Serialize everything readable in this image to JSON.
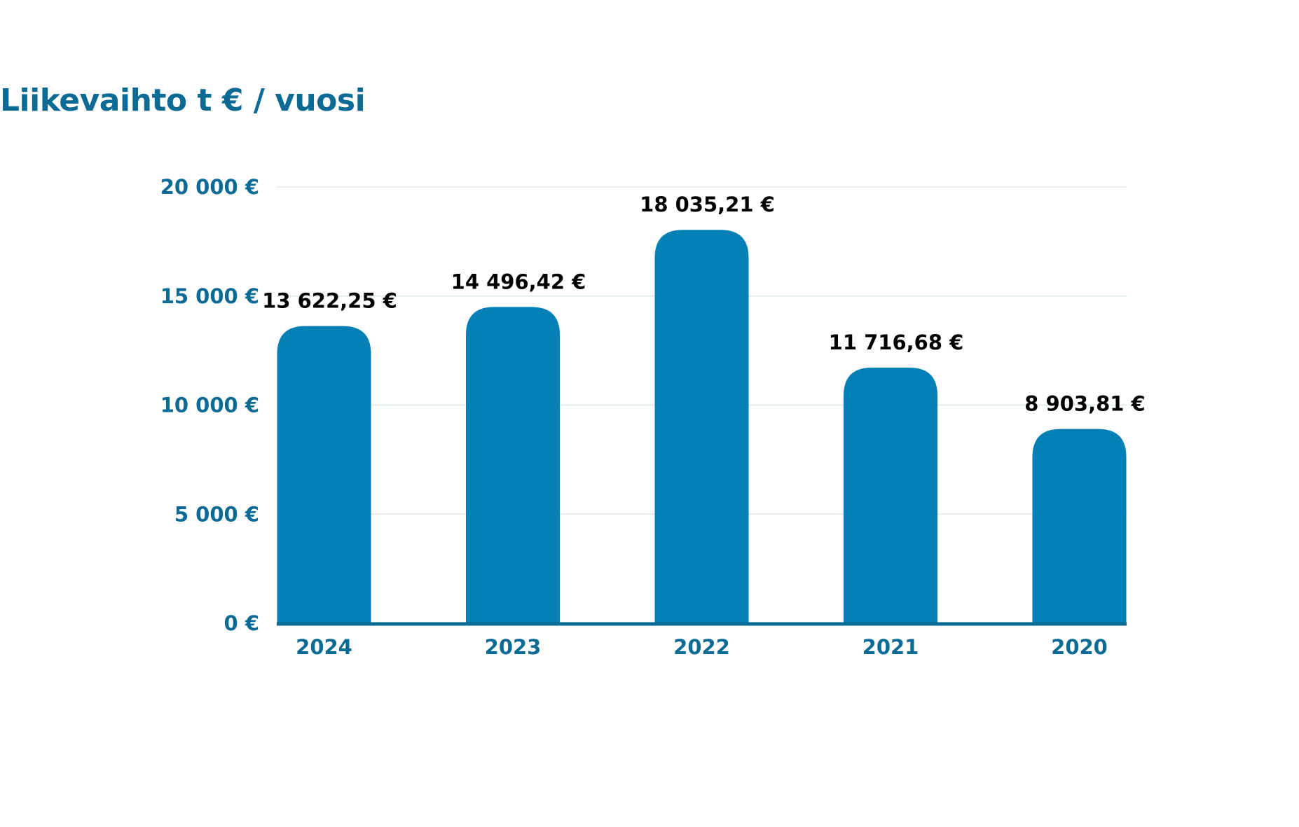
{
  "chart_data": {
    "type": "bar",
    "title": "Liikevaihto t € / vuosi",
    "categories": [
      "2024",
      "2023",
      "2022",
      "2021",
      "2020"
    ],
    "values": [
      13622.25,
      14496.42,
      18035.21,
      11716.68,
      8903.81
    ],
    "value_labels": [
      "13 622,25 €",
      "14 496,42 €",
      "18 035,21 €",
      "11 716,68 €",
      "8 903,81 €"
    ],
    "y_ticks": [
      0,
      5000,
      10000,
      15000,
      20000
    ],
    "y_tick_labels": [
      "0 €",
      "5 000 €",
      "10 000 €",
      "15 000 €",
      "20 000 €"
    ],
    "ylim": [
      0,
      20000
    ],
    "grid": true,
    "legend": "none",
    "colors": {
      "bar": "#0380b5",
      "axis": "#0b6b95",
      "grid": "#dde8ee",
      "title": "#0b6b95"
    }
  }
}
